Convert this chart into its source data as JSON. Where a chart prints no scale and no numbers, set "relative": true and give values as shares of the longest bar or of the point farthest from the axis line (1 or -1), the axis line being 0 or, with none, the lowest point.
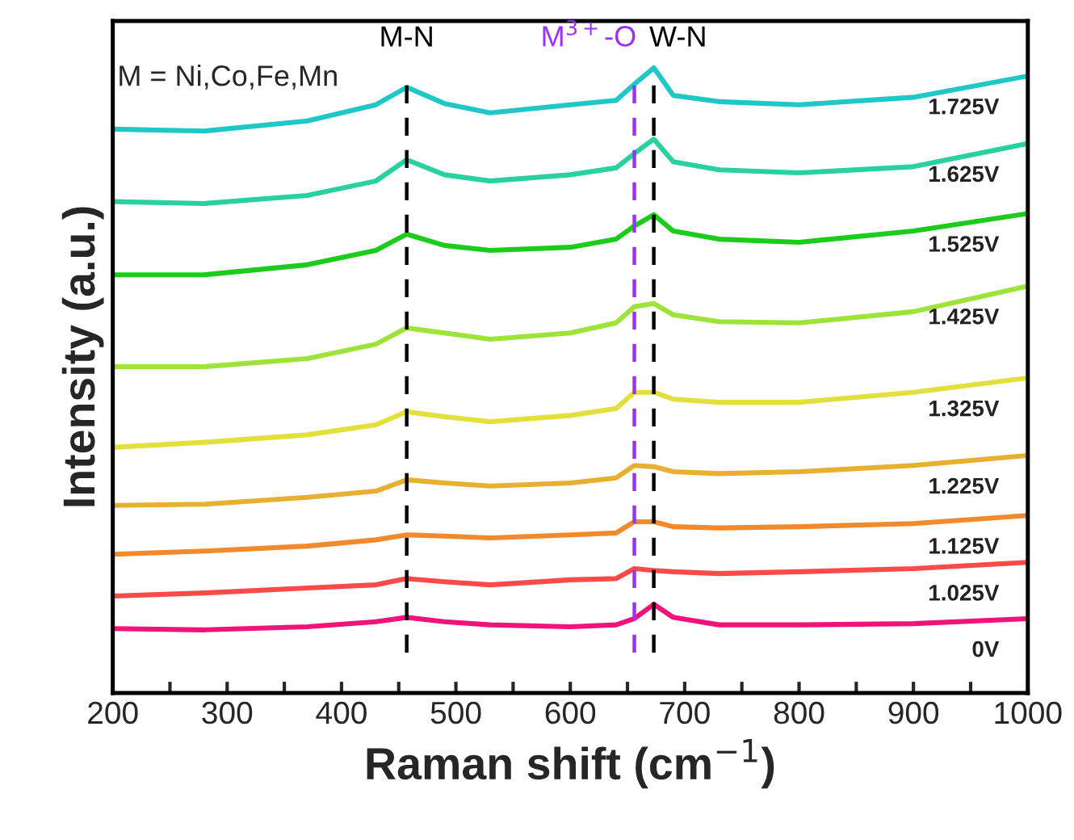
{
  "chart_data": {
    "type": "line",
    "relative": true,
    "xlabel": "Raman shift (cm$^{−1}$)",
    "ylabel": "Intensity (a.u.)",
    "x": [
      200,
      280,
      370,
      430,
      457,
      490,
      530,
      600,
      640,
      656,
      673,
      690,
      730,
      800,
      900,
      1000
    ],
    "xlim": [
      200,
      1000
    ],
    "xticks": [
      200,
      {
        "value": 250,
        "label": null
      },
      300,
      {
        "value": 350,
        "label": null
      },
      400,
      {
        "value": 450,
        "label": null
      },
      500,
      {
        "value": 550,
        "label": null
      },
      600,
      {
        "value": 650,
        "label": null
      },
      700,
      {
        "value": 750,
        "label": null
      },
      800,
      {
        "value": 850,
        "label": null
      },
      900,
      {
        "value": 950,
        "label": null
      },
      1000
    ],
    "tick_labels": "x",
    "series": [
      {
        "name": "0V",
        "color": "#f0147a",
        "values": [
          0.103,
          0.101,
          0.106,
          0.114,
          0.121,
          0.114,
          0.109,
          0.106,
          0.109,
          0.119,
          0.142,
          0.121,
          0.109,
          0.109,
          0.111,
          0.119
        ]
      },
      {
        "name": "1.025V",
        "color": "#fa4a4a",
        "values": [
          0.155,
          0.16,
          0.168,
          0.173,
          0.183,
          0.178,
          0.173,
          0.181,
          0.183,
          0.199,
          0.196,
          0.194,
          0.191,
          0.194,
          0.199,
          0.209
        ]
      },
      {
        "name": "1.125V",
        "color": "#f08a2c",
        "values": [
          0.222,
          0.227,
          0.235,
          0.245,
          0.253,
          0.251,
          0.248,
          0.253,
          0.256,
          0.274,
          0.274,
          0.266,
          0.264,
          0.266,
          0.271,
          0.284
        ]
      },
      {
        "name": "1.225V",
        "color": "#e8b030",
        "values": [
          0.3,
          0.302,
          0.313,
          0.323,
          0.341,
          0.336,
          0.331,
          0.336,
          0.344,
          0.364,
          0.362,
          0.354,
          0.351,
          0.354,
          0.364,
          0.38
        ]
      },
      {
        "name": "1.325V",
        "color": "#e3df3c",
        "values": [
          0.393,
          0.401,
          0.413,
          0.429,
          0.45,
          0.442,
          0.434,
          0.444,
          0.455,
          0.481,
          0.481,
          0.47,
          0.465,
          0.465,
          0.481,
          0.504
        ]
      },
      {
        "name": "1.425V",
        "color": "#9de33a",
        "values": [
          0.522,
          0.522,
          0.535,
          0.558,
          0.584,
          0.576,
          0.566,
          0.576,
          0.592,
          0.618,
          0.623,
          0.605,
          0.594,
          0.592,
          0.61,
          0.651
        ]
      },
      {
        "name": "1.525V",
        "color": "#1ccc1c",
        "values": [
          0.669,
          0.669,
          0.685,
          0.708,
          0.734,
          0.716,
          0.708,
          0.713,
          0.726,
          0.747,
          0.765,
          0.739,
          0.726,
          0.721,
          0.739,
          0.767
        ]
      },
      {
        "name": "1.625V",
        "color": "#2ad1a0",
        "values": [
          0.786,
          0.783,
          0.796,
          0.819,
          0.853,
          0.829,
          0.819,
          0.829,
          0.84,
          0.863,
          0.886,
          0.85,
          0.837,
          0.832,
          0.842,
          0.879
        ]
      },
      {
        "name": "1.725V",
        "color": "#1fc7c7",
        "values": [
          0.902,
          0.899,
          0.915,
          0.941,
          0.969,
          0.943,
          0.928,
          0.941,
          0.948,
          0.974,
          1.0,
          0.956,
          0.946,
          0.941,
          0.953,
          0.987
        ]
      }
    ],
    "ref_lines": [
      {
        "axis": "x",
        "value": 457,
        "label": "M-N",
        "color": "#000000",
        "line_style": "dashed"
      },
      {
        "axis": "x",
        "value": 656,
        "label": "M$^{3+}$-O",
        "color": "#9b30ff",
        "line_style": "dashed"
      },
      {
        "axis": "x",
        "value": 673,
        "label": "W-N",
        "color": "#000000",
        "line_style": "dashed"
      }
    ],
    "annotations": [
      "M = Ni,Co,Fe,Mn"
    ]
  }
}
